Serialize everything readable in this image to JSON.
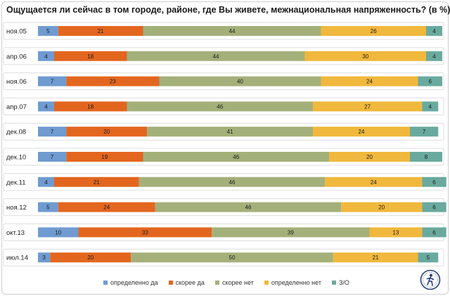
{
  "chart_data": {
    "type": "bar",
    "orientation": "horizontal",
    "stacked": true,
    "title": "Ощущается ли сейчас в том городе, районе, где Вы живете, межнациональная  напряженность?  (в %)",
    "categories": [
      "ноя.05",
      "апр.06",
      "ноя.06",
      "апр.07",
      "дек.08",
      "дек.10",
      "дек.11",
      "ноя.12",
      "окт.13",
      "июл.14"
    ],
    "series": [
      {
        "name": "определенно да",
        "color": "#6f9bd0",
        "values": [
          5,
          4,
          7,
          4,
          7,
          7,
          4,
          5,
          10,
          3
        ]
      },
      {
        "name": "скорее да",
        "color": "#e3661f",
        "values": [
          21,
          18,
          23,
          18,
          20,
          19,
          21,
          24,
          33,
          20
        ]
      },
      {
        "name": "скорее нет",
        "color": "#a4b07a",
        "values": [
          44,
          44,
          40,
          46,
          41,
          46,
          46,
          46,
          39,
          50
        ]
      },
      {
        "name": "определенно нет",
        "color": "#f0b83c",
        "values": [
          26,
          30,
          24,
          27,
          24,
          20,
          24,
          20,
          13,
          21
        ]
      },
      {
        "name": "З/О",
        "color": "#6aaa9e",
        "values": [
          4,
          4,
          6,
          4,
          7,
          8,
          6,
          6,
          6,
          5
        ]
      }
    ],
    "xlim": [
      0,
      100
    ],
    "legend_position": "bottom",
    "grid": false
  }
}
